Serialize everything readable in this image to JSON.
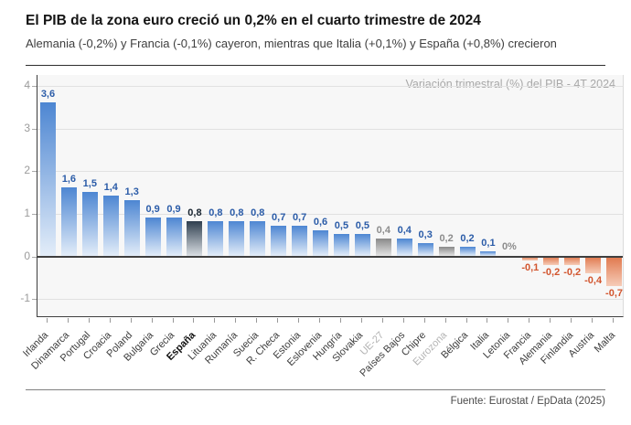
{
  "header": {
    "title": "El PIB de la zona euro creció un 0,2% en el cuarto trimestre de 2024",
    "subtitle": "Alemania (-0,2%) y Francia (-0,1%) cayeron, mientras que Italia (+0,1%) y España (+0,8%) crecieron"
  },
  "chart_data": {
    "type": "bar",
    "title": "El PIB de la zona euro creció un 0,2% en el cuarto trimestre de 2024",
    "annotation": "Variación trimestral (%) del PIB - 4T 2024",
    "ylabel": "",
    "xlabel": "",
    "ylim": [
      -1.4,
      4.3
    ],
    "yticks": [
      4,
      3,
      2,
      1,
      0,
      -1
    ],
    "grid": true,
    "decimal_separator": ",",
    "bars": [
      {
        "label": "Irlanda",
        "value": 3.6,
        "display": "3,6",
        "style": "blue"
      },
      {
        "label": "Dinamarca",
        "value": 1.6,
        "display": "1,6",
        "style": "blue"
      },
      {
        "label": "Portugal",
        "value": 1.5,
        "display": "1,5",
        "style": "blue"
      },
      {
        "label": "Croacia",
        "value": 1.4,
        "display": "1,4",
        "style": "blue"
      },
      {
        "label": "Poland",
        "value": 1.3,
        "display": "1,3",
        "style": "blue"
      },
      {
        "label": "Bulgaria",
        "value": 0.9,
        "display": "0,9",
        "style": "blue"
      },
      {
        "label": "Grecia",
        "value": 0.9,
        "display": "0,9",
        "style": "blue"
      },
      {
        "label": "España",
        "value": 0.8,
        "display": "0,8",
        "style": "highlight"
      },
      {
        "label": "Lituania",
        "value": 0.8,
        "display": "0,8",
        "style": "blue"
      },
      {
        "label": "Rumanía",
        "value": 0.8,
        "display": "0,8",
        "style": "blue"
      },
      {
        "label": "Suecia",
        "value": 0.8,
        "display": "0,8",
        "style": "blue"
      },
      {
        "label": "R. Checa",
        "value": 0.7,
        "display": "0,7",
        "style": "blue"
      },
      {
        "label": "Estonia",
        "value": 0.7,
        "display": "0,7",
        "style": "blue"
      },
      {
        "label": "Eslovenia",
        "value": 0.6,
        "display": "0,6",
        "style": "blue"
      },
      {
        "label": "Hungría",
        "value": 0.5,
        "display": "0,5",
        "style": "blue"
      },
      {
        "label": "Slovakia",
        "value": 0.5,
        "display": "0,5",
        "style": "blue"
      },
      {
        "label": "UE-27",
        "value": 0.4,
        "display": "0,4",
        "style": "gray"
      },
      {
        "label": "Países Bajos",
        "value": 0.4,
        "display": "0,4",
        "style": "blue"
      },
      {
        "label": "Chipre",
        "value": 0.3,
        "display": "0,3",
        "style": "blue"
      },
      {
        "label": "Eurozona",
        "value": 0.2,
        "display": "0,2",
        "style": "gray"
      },
      {
        "label": "Bélgica",
        "value": 0.2,
        "display": "0,2",
        "style": "blue"
      },
      {
        "label": "Italia",
        "value": 0.1,
        "display": "0,1",
        "style": "blue"
      },
      {
        "label": "Letonia",
        "value": 0.0,
        "display": "0%",
        "style": "zero"
      },
      {
        "label": "Francia",
        "value": -0.1,
        "display": "-0,1",
        "style": "negative"
      },
      {
        "label": "Alemania",
        "value": -0.2,
        "display": "-0,2",
        "style": "negative"
      },
      {
        "label": "Finlandia",
        "value": -0.2,
        "display": "-0,2",
        "style": "negative"
      },
      {
        "label": "Austria",
        "value": -0.4,
        "display": "-0,4",
        "style": "negative"
      },
      {
        "label": "Malta",
        "value": -0.7,
        "display": "-0,7",
        "style": "negative"
      }
    ],
    "palette": {
      "blue": {
        "top": "#4d86d2",
        "bottom": "#e3edf9",
        "label": "#2b5ca8",
        "axis": "#3c3c3c"
      },
      "highlight": {
        "top": "#2f3f4f",
        "bottom": "#dadfe4",
        "label": "#16222e",
        "axis": "#111111"
      },
      "gray": {
        "top": "#898989",
        "bottom": "#e4e4e4",
        "label": "#8c8c8c",
        "axis": "#b3b3b3"
      },
      "negative": {
        "top": "#e0784d",
        "bottom": "#f6ccb8",
        "label": "#d2552e",
        "axis": "#3c3c3c"
      },
      "zero": {
        "top": "",
        "bottom": "",
        "label": "#8c8c8c",
        "axis": "#3c3c3c"
      }
    },
    "colors": {
      "plot_background": "#f7f7f7",
      "gridline": "#e1e1e1",
      "axis_line": "#3f3f3f",
      "annotation_text": "#a8a8a8"
    },
    "legend": null
  },
  "footer": {
    "source": "Fuente: Eurostat / EpData (2025)"
  }
}
